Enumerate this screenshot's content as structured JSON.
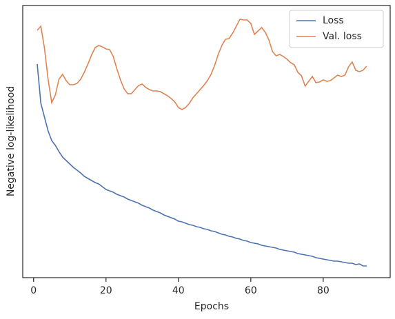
{
  "chart_data": {
    "type": "line",
    "xlabel": "Epochs",
    "ylabel": "Negative log-likelihood",
    "x": [
      1,
      2,
      3,
      4,
      5,
      6,
      7,
      8,
      9,
      10,
      11,
      12,
      13,
      14,
      15,
      16,
      17,
      18,
      19,
      20,
      21,
      22,
      23,
      24,
      25,
      26,
      27,
      28,
      29,
      30,
      31,
      32,
      33,
      34,
      35,
      36,
      37,
      38,
      39,
      40,
      41,
      42,
      43,
      44,
      45,
      46,
      47,
      48,
      49,
      50,
      51,
      52,
      53,
      54,
      55,
      56,
      57,
      58,
      59,
      60,
      61,
      62,
      63,
      64,
      65,
      66,
      67,
      68,
      69,
      70,
      71,
      72,
      73,
      74,
      75,
      76,
      77,
      78,
      79,
      80,
      81,
      82,
      83,
      84,
      85,
      86,
      87,
      88,
      89,
      90,
      91,
      92
    ],
    "series": [
      {
        "name": "Loss",
        "color": "#4c72b0",
        "values": [
          310,
          253,
          233,
          213,
          199,
          192,
          183,
          175,
          170,
          165,
          160,
          156,
          152,
          147,
          144,
          141,
          138,
          136,
          132,
          128,
          126,
          124,
          121,
          119,
          117,
          114,
          112,
          110,
          108,
          105,
          103,
          101,
          98,
          96,
          94,
          91,
          89,
          87,
          85,
          82,
          81,
          79,
          77,
          76,
          74,
          73,
          71,
          70,
          68,
          67,
          65,
          63,
          62,
          60,
          59,
          57,
          56,
          54,
          53,
          51,
          50,
          49,
          47,
          46,
          45,
          44,
          43,
          41,
          40,
          39,
          38,
          37,
          35,
          34,
          33,
          32,
          31,
          29,
          28,
          27,
          26,
          25,
          24,
          24,
          23,
          22,
          21,
          21,
          19,
          20,
          17,
          17
        ]
      },
      {
        "name": "Val. loss",
        "color": "#dd8452",
        "values": [
          359,
          365,
          333,
          288,
          254,
          265,
          288,
          295,
          286,
          280,
          280,
          282,
          288,
          298,
          310,
          323,
          334,
          337,
          335,
          332,
          331,
          321,
          303,
          287,
          274,
          267,
          267,
          273,
          279,
          281,
          276,
          273,
          271,
          271,
          270,
          267,
          264,
          260,
          255,
          247,
          244,
          247,
          253,
          261,
          267,
          273,
          279,
          286,
          295,
          308,
          324,
          337,
          346,
          347,
          355,
          365,
          375,
          374,
          374,
          369,
          353,
          358,
          363,
          356,
          345,
          328,
          322,
          324,
          321,
          317,
          312,
          309,
          298,
          293,
          278,
          285,
          292,
          283,
          284,
          287,
          285,
          286,
          290,
          294,
          292,
          294,
          306,
          313,
          301,
          299,
          301,
          307
        ]
      }
    ],
    "xlim": [
      -3,
      98.5
    ],
    "xticks": [
      0,
      20,
      40,
      60,
      80
    ],
    "ylim": [
      0,
      395
    ],
    "legend": "upper right",
    "grid": false
  }
}
